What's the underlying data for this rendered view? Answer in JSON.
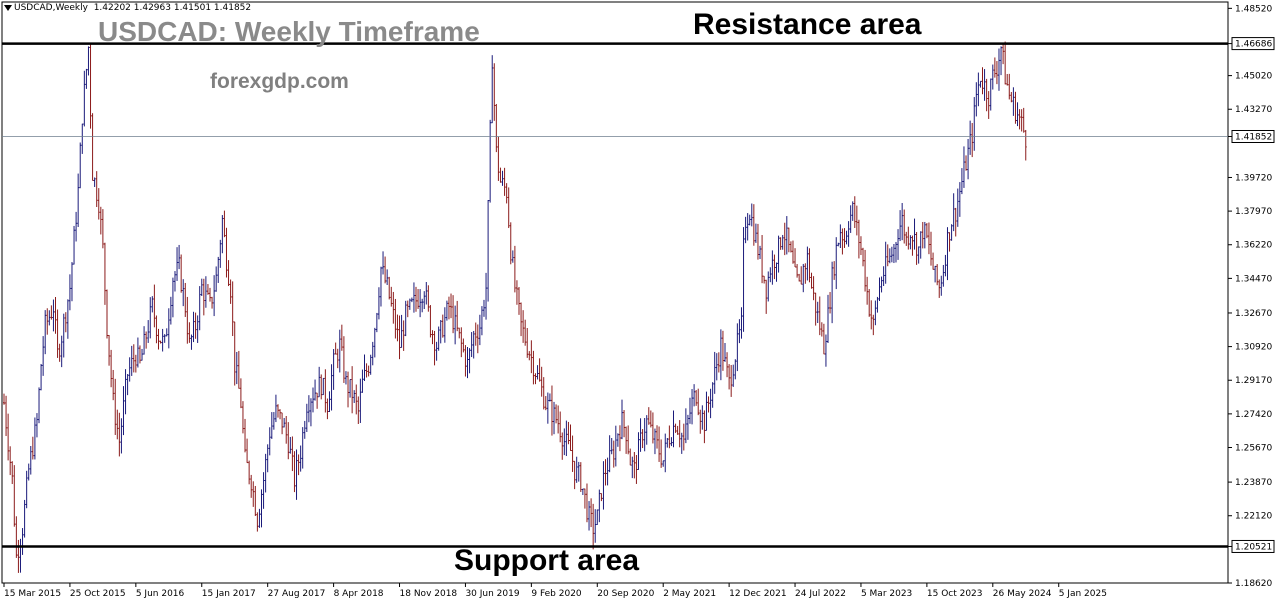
{
  "header": {
    "symbol": "USDCAD,Weekly",
    "ohlc": "1.42202 1.42963 1.41501 1.41852",
    "symbol_icon": "triangle-down-icon"
  },
  "annotations": {
    "title": "USDCAD: Weekly Timeframe",
    "watermark": "forexgdp.com",
    "resistance": "Resistance area",
    "support": "Support area"
  },
  "chart_data": {
    "type": "bar",
    "style": "ohlc-bars",
    "title": "USDCAD: Weekly Timeframe",
    "ylim": [
      1.1862,
      1.4885
    ],
    "y_ticks": [
      "1.48520",
      "1.46686",
      "1.45020",
      "1.43270",
      "1.41852",
      "1.39720",
      "1.37970",
      "1.36220",
      "1.34470",
      "1.32670",
      "1.30920",
      "1.29170",
      "1.27420",
      "1.25670",
      "1.23870",
      "1.22120",
      "1.20521",
      "1.18620"
    ],
    "x_ticks": [
      {
        "label": "15 Mar 2015",
        "t": 0
      },
      {
        "label": "25 Oct 2015",
        "t": 32
      },
      {
        "label": "5 Jun 2016",
        "t": 64
      },
      {
        "label": "15 Jan 2017",
        "t": 96
      },
      {
        "label": "27 Aug 2017",
        "t": 128
      },
      {
        "label": "8 Apr 2018",
        "t": 160
      },
      {
        "label": "18 Nov 2018",
        "t": 192
      },
      {
        "label": "30 Jun 2019",
        "t": 224
      },
      {
        "label": "9 Feb 2020",
        "t": 256
      },
      {
        "label": "20 Sep 2020",
        "t": 288
      },
      {
        "label": "2 May 2021",
        "t": 320
      },
      {
        "label": "12 Dec 2021",
        "t": 352
      },
      {
        "label": "24 Jul 2022",
        "t": 384
      },
      {
        "label": "5 Mar 2023",
        "t": 416
      },
      {
        "label": "15 Oct 2023",
        "t": 448
      },
      {
        "label": "26 May 2024",
        "t": 480
      },
      {
        "label": "5 Jan 2025",
        "t": 512
      }
    ],
    "levels": [
      {
        "name": "Resistance area",
        "value": 1.46686,
        "label": "1.46686"
      },
      {
        "name": "Support area",
        "value": 1.20521,
        "label": "1.20521"
      },
      {
        "name": "current",
        "value": 1.41852,
        "label": "1.41852"
      }
    ],
    "anchors": [
      [
        0,
        1.28
      ],
      [
        4,
        1.24
      ],
      [
        6,
        1.2
      ],
      [
        9,
        1.215
      ],
      [
        12,
        1.245
      ],
      [
        16,
        1.27
      ],
      [
        18,
        1.3
      ],
      [
        20,
        1.32
      ],
      [
        24,
        1.33
      ],
      [
        26,
        1.305
      ],
      [
        28,
        1.315
      ],
      [
        32,
        1.34
      ],
      [
        36,
        1.39
      ],
      [
        38,
        1.43
      ],
      [
        41,
        1.465
      ],
      [
        43,
        1.4
      ],
      [
        46,
        1.385
      ],
      [
        48,
        1.36
      ],
      [
        50,
        1.32
      ],
      [
        53,
        1.28
      ],
      [
        56,
        1.26
      ],
      [
        60,
        1.295
      ],
      [
        64,
        1.305
      ],
      [
        66,
        1.3
      ],
      [
        70,
        1.32
      ],
      [
        72,
        1.33
      ],
      [
        75,
        1.315
      ],
      [
        78,
        1.31
      ],
      [
        82,
        1.345
      ],
      [
        85,
        1.35
      ],
      [
        88,
        1.33
      ],
      [
        90,
        1.31
      ],
      [
        93,
        1.32
      ],
      [
        96,
        1.34
      ],
      [
        100,
        1.33
      ],
      [
        103,
        1.345
      ],
      [
        106,
        1.375
      ],
      [
        108,
        1.355
      ],
      [
        110,
        1.34
      ],
      [
        112,
        1.3
      ],
      [
        115,
        1.28
      ],
      [
        117,
        1.25
      ],
      [
        120,
        1.24
      ],
      [
        123,
        1.22
      ],
      [
        126,
        1.24
      ],
      [
        129,
        1.265
      ],
      [
        132,
        1.275
      ],
      [
        135,
        1.27
      ],
      [
        138,
        1.26
      ],
      [
        141,
        1.24
      ],
      [
        144,
        1.255
      ],
      [
        147,
        1.28
      ],
      [
        150,
        1.285
      ],
      [
        154,
        1.29
      ],
      [
        157,
        1.28
      ],
      [
        160,
        1.3
      ],
      [
        163,
        1.31
      ],
      [
        166,
        1.29
      ],
      [
        169,
        1.285
      ],
      [
        172,
        1.275
      ],
      [
        174,
        1.29
      ],
      [
        177,
        1.3
      ],
      [
        180,
        1.32
      ],
      [
        183,
        1.35
      ],
      [
        186,
        1.34
      ],
      [
        189,
        1.325
      ],
      [
        192,
        1.31
      ],
      [
        195,
        1.325
      ],
      [
        198,
        1.33
      ],
      [
        201,
        1.335
      ],
      [
        204,
        1.34
      ],
      [
        207,
        1.32
      ],
      [
        210,
        1.31
      ],
      [
        213,
        1.32
      ],
      [
        216,
        1.33
      ],
      [
        219,
        1.32
      ],
      [
        222,
        1.31
      ],
      [
        225,
        1.3
      ],
      [
        228,
        1.315
      ],
      [
        231,
        1.32
      ],
      [
        234,
        1.34
      ],
      [
        235,
        1.38
      ],
      [
        236,
        1.42
      ],
      [
        237,
        1.46
      ],
      [
        239,
        1.41
      ],
      [
        241,
        1.395
      ],
      [
        244,
        1.39
      ],
      [
        246,
        1.36
      ],
      [
        248,
        1.34
      ],
      [
        251,
        1.32
      ],
      [
        254,
        1.31
      ],
      [
        257,
        1.3
      ],
      [
        260,
        1.29
      ],
      [
        263,
        1.28
      ],
      [
        266,
        1.275
      ],
      [
        269,
        1.27
      ],
      [
        272,
        1.26
      ],
      [
        275,
        1.255
      ],
      [
        277,
        1.245
      ],
      [
        280,
        1.24
      ],
      [
        282,
        1.23
      ],
      [
        284,
        1.22
      ],
      [
        286,
        1.215
      ],
      [
        288,
        1.22
      ],
      [
        290,
        1.235
      ],
      [
        292,
        1.245
      ],
      [
        294,
        1.25
      ],
      [
        296,
        1.255
      ],
      [
        298,
        1.265
      ],
      [
        300,
        1.27
      ],
      [
        302,
        1.265
      ],
      [
        304,
        1.25
      ],
      [
        306,
        1.245
      ],
      [
        308,
        1.255
      ],
      [
        310,
        1.265
      ],
      [
        312,
        1.27
      ],
      [
        314,
        1.265
      ],
      [
        316,
        1.26
      ],
      [
        318,
        1.255
      ],
      [
        320,
        1.25
      ],
      [
        322,
        1.26
      ],
      [
        324,
        1.265
      ],
      [
        326,
        1.27
      ],
      [
        328,
        1.265
      ],
      [
        330,
        1.26
      ],
      [
        332,
        1.27
      ],
      [
        334,
        1.28
      ],
      [
        336,
        1.285
      ],
      [
        338,
        1.275
      ],
      [
        340,
        1.27
      ],
      [
        342,
        1.28
      ],
      [
        344,
        1.29
      ],
      [
        346,
        1.3
      ],
      [
        348,
        1.31
      ],
      [
        350,
        1.3
      ],
      [
        352,
        1.29
      ],
      [
        354,
        1.3
      ],
      [
        356,
        1.31
      ],
      [
        358,
        1.32
      ],
      [
        359,
        1.36
      ],
      [
        360,
        1.375
      ],
      [
        362,
        1.38
      ],
      [
        364,
        1.37
      ],
      [
        366,
        1.36
      ],
      [
        368,
        1.35
      ],
      [
        370,
        1.34
      ],
      [
        372,
        1.35
      ],
      [
        374,
        1.355
      ],
      [
        376,
        1.36
      ],
      [
        378,
        1.37
      ],
      [
        380,
        1.365
      ],
      [
        382,
        1.355
      ],
      [
        384,
        1.345
      ],
      [
        386,
        1.34
      ],
      [
        388,
        1.35
      ],
      [
        390,
        1.355
      ],
      [
        392,
        1.34
      ],
      [
        394,
        1.33
      ],
      [
        396,
        1.32
      ],
      [
        398,
        1.31
      ],
      [
        400,
        1.325
      ],
      [
        402,
        1.345
      ],
      [
        404,
        1.36
      ],
      [
        406,
        1.37
      ],
      [
        408,
        1.365
      ],
      [
        410,
        1.375
      ],
      [
        412,
        1.38
      ],
      [
        414,
        1.37
      ],
      [
        416,
        1.36
      ],
      [
        418,
        1.345
      ],
      [
        420,
        1.33
      ],
      [
        422,
        1.32
      ],
      [
        424,
        1.335
      ],
      [
        426,
        1.345
      ],
      [
        428,
        1.35
      ],
      [
        430,
        1.355
      ],
      [
        432,
        1.36
      ],
      [
        434,
        1.37
      ],
      [
        436,
        1.375
      ],
      [
        438,
        1.365
      ],
      [
        440,
        1.37
      ],
      [
        442,
        1.365
      ],
      [
        444,
        1.36
      ],
      [
        446,
        1.37
      ],
      [
        448,
        1.365
      ],
      [
        450,
        1.355
      ],
      [
        452,
        1.345
      ],
      [
        454,
        1.34
      ],
      [
        456,
        1.35
      ],
      [
        458,
        1.365
      ],
      [
        460,
        1.375
      ],
      [
        462,
        1.38
      ],
      [
        464,
        1.39
      ],
      [
        466,
        1.4
      ],
      [
        468,
        1.41
      ],
      [
        470,
        1.42
      ],
      [
        472,
        1.44
      ],
      [
        474,
        1.45
      ],
      [
        476,
        1.445
      ],
      [
        478,
        1.44
      ],
      [
        480,
        1.45
      ],
      [
        482,
        1.455
      ],
      [
        484,
        1.465
      ],
      [
        486,
        1.45
      ],
      [
        488,
        1.44
      ],
      [
        490,
        1.435
      ],
      [
        492,
        1.43
      ],
      [
        494,
        1.425
      ],
      [
        496,
        1.418
      ]
    ],
    "noise": 0.006,
    "bar_colors": [
      "#1a1a7a",
      "#8b1a1a"
    ]
  }
}
